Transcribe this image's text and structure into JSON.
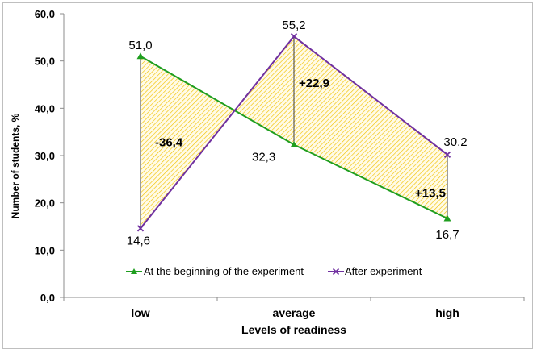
{
  "chart_data": {
    "type": "line",
    "categories": [
      "low",
      "average",
      "high"
    ],
    "xlabel": "Levels of readiness",
    "ylabel": "Number of students, %",
    "ylim": [
      0,
      60
    ],
    "y_ticks": [
      "0,0",
      "10,0",
      "20,0",
      "30,0",
      "40,0",
      "50,0",
      "60,0"
    ],
    "grid": false,
    "legend_position": "bottom-inside",
    "series": [
      {
        "name": "At the beginning of the experiment",
        "values": [
          51.0,
          32.3,
          16.7
        ],
        "labels": [
          "51,0",
          "32,3",
          "16,7"
        ],
        "color": "#1f9e1f",
        "marker": "triangle"
      },
      {
        "name": "After experiment",
        "values": [
          14.6,
          55.2,
          30.2
        ],
        "labels": [
          "14,6",
          "55,2",
          "30,2"
        ],
        "color": "#7030a0",
        "marker": "x"
      }
    ],
    "differences": [
      "-36,4",
      "+22,9",
      "+13,5"
    ],
    "fill_color": "#f2c200"
  }
}
